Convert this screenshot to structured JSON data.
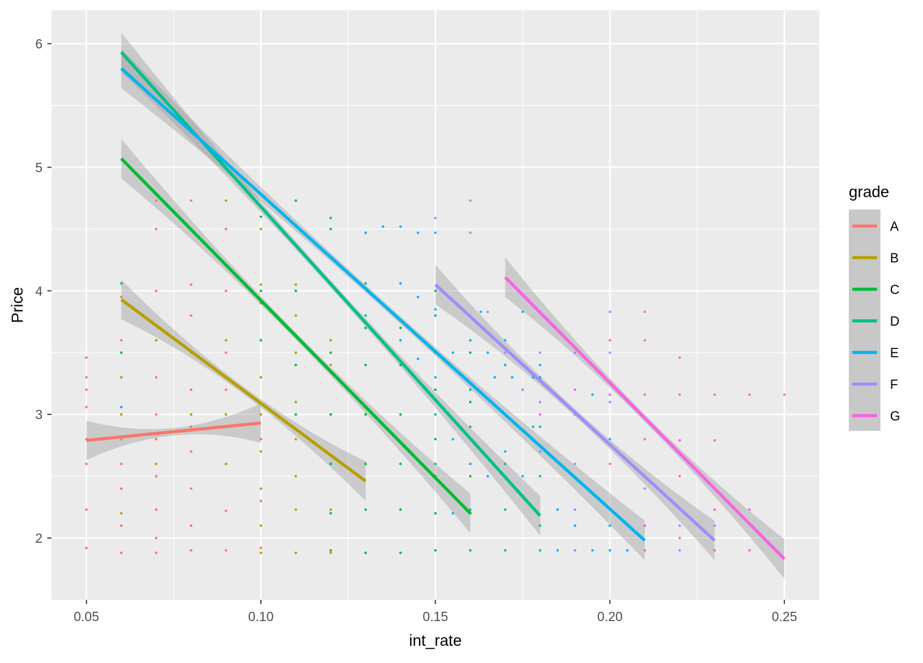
{
  "chart_data": {
    "type": "scatter",
    "xlabel": "int_rate",
    "ylabel": "Price",
    "xlim": [
      0.04,
      0.26
    ],
    "ylim": [
      1.5,
      6.27
    ],
    "x_ticks": [
      0.05,
      0.1,
      0.15,
      0.2,
      0.25
    ],
    "x_tick_labels": [
      "0.05",
      "0.10",
      "0.15",
      "0.20",
      "0.25"
    ],
    "y_ticks": [
      2,
      3,
      4,
      5,
      6
    ],
    "y_tick_labels": [
      "2",
      "3",
      "4",
      "5",
      "6"
    ],
    "grid": true,
    "legend": {
      "title": "grade",
      "position": "right"
    },
    "series": [
      {
        "name": "A",
        "color": "#F8766D",
        "fit": {
          "x": [
            0.05,
            0.1
          ],
          "y": [
            2.79,
            2.93
          ]
        },
        "points": [
          [
            0.05,
            1.92
          ],
          [
            0.05,
            2.23
          ],
          [
            0.05,
            2.6
          ],
          [
            0.05,
            2.8
          ],
          [
            0.05,
            3.06
          ],
          [
            0.05,
            3.2
          ],
          [
            0.05,
            3.3
          ],
          [
            0.05,
            3.46
          ],
          [
            0.06,
            1.88
          ],
          [
            0.06,
            2.1
          ],
          [
            0.06,
            2.4
          ],
          [
            0.06,
            2.6
          ],
          [
            0.06,
            2.8
          ],
          [
            0.06,
            3.06
          ],
          [
            0.06,
            3.3
          ],
          [
            0.06,
            3.6
          ],
          [
            0.06,
            3.95
          ],
          [
            0.07,
            1.88
          ],
          [
            0.07,
            2.0
          ],
          [
            0.07,
            2.23
          ],
          [
            0.07,
            2.5
          ],
          [
            0.07,
            2.8
          ],
          [
            0.07,
            3.0
          ],
          [
            0.07,
            3.3
          ],
          [
            0.07,
            3.6
          ],
          [
            0.07,
            4.0
          ],
          [
            0.07,
            4.5
          ],
          [
            0.07,
            4.73
          ],
          [
            0.08,
            1.9
          ],
          [
            0.08,
            2.1
          ],
          [
            0.08,
            2.4
          ],
          [
            0.08,
            2.7
          ],
          [
            0.08,
            2.9
          ],
          [
            0.08,
            3.2
          ],
          [
            0.08,
            3.5
          ],
          [
            0.08,
            3.8
          ],
          [
            0.08,
            4.05
          ],
          [
            0.08,
            4.5
          ],
          [
            0.08,
            4.73
          ],
          [
            0.09,
            1.9
          ],
          [
            0.09,
            2.22
          ],
          [
            0.09,
            2.6
          ],
          [
            0.09,
            2.9
          ],
          [
            0.09,
            3.2
          ],
          [
            0.09,
            3.5
          ],
          [
            0.09,
            4.0
          ],
          [
            0.09,
            4.5
          ],
          [
            0.1,
            1.92
          ],
          [
            0.1,
            2.3
          ],
          [
            0.1,
            2.8
          ],
          [
            0.1,
            3.3
          ]
        ]
      },
      {
        "name": "B",
        "color": "#B79F00",
        "fit": {
          "x": [
            0.06,
            0.13
          ],
          "y": [
            3.93,
            2.46
          ]
        },
        "points": [
          [
            0.06,
            2.2
          ],
          [
            0.06,
            3.0
          ],
          [
            0.06,
            3.3
          ],
          [
            0.07,
            2.6
          ],
          [
            0.07,
            3.6
          ],
          [
            0.08,
            3.0
          ],
          [
            0.08,
            3.5
          ],
          [
            0.09,
            2.6
          ],
          [
            0.09,
            3.0
          ],
          [
            0.09,
            3.6
          ],
          [
            0.09,
            4.73
          ],
          [
            0.1,
            1.88
          ],
          [
            0.1,
            2.1
          ],
          [
            0.1,
            2.4
          ],
          [
            0.1,
            2.7
          ],
          [
            0.1,
            3.0
          ],
          [
            0.1,
            3.3
          ],
          [
            0.1,
            3.6
          ],
          [
            0.1,
            3.9
          ],
          [
            0.1,
            4.05
          ],
          [
            0.1,
            4.5
          ],
          [
            0.11,
            1.88
          ],
          [
            0.11,
            2.23
          ],
          [
            0.11,
            2.5
          ],
          [
            0.11,
            2.8
          ],
          [
            0.11,
            3.1
          ],
          [
            0.11,
            3.5
          ],
          [
            0.11,
            3.8
          ],
          [
            0.11,
            4.05
          ],
          [
            0.12,
            1.88
          ],
          [
            0.12,
            2.23
          ],
          [
            0.12,
            2.6
          ],
          [
            0.12,
            3.0
          ],
          [
            0.12,
            3.4
          ],
          [
            0.12,
            3.6
          ],
          [
            0.13,
            2.6
          ],
          [
            0.13,
            3.0
          ]
        ]
      },
      {
        "name": "C",
        "color": "#00BA38",
        "fit": {
          "x": [
            0.06,
            0.16
          ],
          "y": [
            5.07,
            2.2
          ]
        },
        "points": [
          [
            0.06,
            3.5
          ],
          [
            0.06,
            4.06
          ],
          [
            0.09,
            3.3
          ],
          [
            0.1,
            3.6
          ],
          [
            0.1,
            4.0
          ],
          [
            0.1,
            4.6
          ],
          [
            0.11,
            3.0
          ],
          [
            0.11,
            3.4
          ],
          [
            0.11,
            4.0
          ],
          [
            0.11,
            4.73
          ],
          [
            0.12,
            1.9
          ],
          [
            0.12,
            2.2
          ],
          [
            0.12,
            2.6
          ],
          [
            0.12,
            3.0
          ],
          [
            0.12,
            3.5
          ],
          [
            0.12,
            4.06
          ],
          [
            0.12,
            4.5
          ],
          [
            0.13,
            1.88
          ],
          [
            0.13,
            2.23
          ],
          [
            0.13,
            2.6
          ],
          [
            0.13,
            3.0
          ],
          [
            0.13,
            3.4
          ],
          [
            0.13,
            3.7
          ],
          [
            0.13,
            4.06
          ],
          [
            0.13,
            4.47
          ],
          [
            0.14,
            1.88
          ],
          [
            0.14,
            2.23
          ],
          [
            0.14,
            2.6
          ],
          [
            0.14,
            3.0
          ],
          [
            0.14,
            3.4
          ],
          [
            0.14,
            3.7
          ],
          [
            0.15,
            1.9
          ],
          [
            0.15,
            2.2
          ],
          [
            0.15,
            2.5
          ],
          [
            0.15,
            2.8
          ],
          [
            0.15,
            3.2
          ],
          [
            0.15,
            3.5
          ],
          [
            0.15,
            3.8
          ],
          [
            0.16,
            1.9
          ],
          [
            0.16,
            2.2
          ],
          [
            0.16,
            2.5
          ],
          [
            0.16,
            2.8
          ],
          [
            0.16,
            3.1
          ],
          [
            0.16,
            3.5
          ]
        ]
      },
      {
        "name": "D",
        "color": "#00C08B",
        "fit": {
          "x": [
            0.06,
            0.18
          ],
          "y": [
            5.93,
            2.18
          ]
        },
        "points": [
          [
            0.06,
            4.06
          ],
          [
            0.12,
            4.06
          ],
          [
            0.12,
            4.59
          ],
          [
            0.13,
            3.8
          ],
          [
            0.13,
            4.06
          ],
          [
            0.14,
            3.6
          ],
          [
            0.14,
            4.06
          ],
          [
            0.15,
            2.2
          ],
          [
            0.15,
            2.6
          ],
          [
            0.15,
            3.0
          ],
          [
            0.15,
            3.5
          ],
          [
            0.15,
            3.8
          ],
          [
            0.15,
            4.0
          ],
          [
            0.16,
            1.9
          ],
          [
            0.16,
            2.23
          ],
          [
            0.16,
            2.6
          ],
          [
            0.16,
            2.9
          ],
          [
            0.16,
            3.2
          ],
          [
            0.16,
            3.6
          ],
          [
            0.17,
            1.9
          ],
          [
            0.17,
            2.23
          ],
          [
            0.17,
            2.6
          ],
          [
            0.17,
            3.0
          ],
          [
            0.17,
            3.4
          ],
          [
            0.18,
            1.9
          ],
          [
            0.18,
            2.1
          ],
          [
            0.18,
            2.5
          ],
          [
            0.18,
            2.9
          ]
        ]
      },
      {
        "name": "E",
        "color": "#00B4F0",
        "fit": {
          "x": [
            0.06,
            0.21
          ],
          "y": [
            5.8,
            1.98
          ]
        },
        "points": [
          [
            0.06,
            3.06
          ],
          [
            0.13,
            4.47
          ],
          [
            0.135,
            4.52
          ],
          [
            0.14,
            4.52
          ],
          [
            0.145,
            4.47
          ],
          [
            0.15,
            4.47
          ],
          [
            0.14,
            4.06
          ],
          [
            0.145,
            3.95
          ],
          [
            0.15,
            3.85
          ],
          [
            0.14,
            3.6
          ],
          [
            0.145,
            3.45
          ],
          [
            0.15,
            3.3
          ],
          [
            0.155,
            3.5
          ],
          [
            0.16,
            3.6
          ],
          [
            0.155,
            2.8
          ],
          [
            0.16,
            2.6
          ],
          [
            0.155,
            2.2
          ],
          [
            0.163,
            3.83
          ],
          [
            0.165,
            3.5
          ],
          [
            0.167,
            3.3
          ],
          [
            0.17,
            3.6
          ],
          [
            0.172,
            3.3
          ],
          [
            0.175,
            3.83
          ],
          [
            0.175,
            3.4
          ],
          [
            0.178,
            3.3
          ],
          [
            0.18,
            3.83
          ],
          [
            0.18,
            3.4
          ],
          [
            0.18,
            3.3
          ],
          [
            0.165,
            2.5
          ],
          [
            0.17,
            2.7
          ],
          [
            0.175,
            2.5
          ],
          [
            0.178,
            2.9
          ],
          [
            0.185,
            1.9
          ],
          [
            0.19,
            1.9
          ],
          [
            0.195,
            1.9
          ],
          [
            0.2,
            1.9
          ],
          [
            0.185,
            2.23
          ],
          [
            0.19,
            2.1
          ],
          [
            0.2,
            2.1
          ],
          [
            0.205,
            1.9
          ],
          [
            0.21,
            2.1
          ],
          [
            0.19,
            3.0
          ],
          [
            0.195,
            3.16
          ],
          [
            0.2,
            3.16
          ],
          [
            0.2,
            2.8
          ],
          [
            0.21,
            2.5
          ]
        ]
      },
      {
        "name": "F",
        "color": "#9C8DFF",
        "fit": {
          "x": [
            0.15,
            0.23
          ],
          "y": [
            4.05,
            1.98
          ]
        },
        "points": [
          [
            0.15,
            4.59
          ],
          [
            0.16,
            4.73
          ],
          [
            0.16,
            4.47
          ],
          [
            0.165,
            3.83
          ],
          [
            0.17,
            3.5
          ],
          [
            0.175,
            3.2
          ],
          [
            0.18,
            3.5
          ],
          [
            0.18,
            3.1
          ],
          [
            0.18,
            2.7
          ],
          [
            0.19,
            1.9
          ],
          [
            0.19,
            2.23
          ],
          [
            0.19,
            2.6
          ],
          [
            0.19,
            3.0
          ],
          [
            0.19,
            3.5
          ],
          [
            0.2,
            3.1
          ],
          [
            0.2,
            3.83
          ],
          [
            0.2,
            3.5
          ],
          [
            0.21,
            1.9
          ],
          [
            0.21,
            2.1
          ],
          [
            0.21,
            2.4
          ],
          [
            0.22,
            1.9
          ],
          [
            0.22,
            2.1
          ],
          [
            0.23,
            1.9
          ],
          [
            0.23,
            2.1
          ]
        ]
      },
      {
        "name": "G",
        "color": "#F564E3",
        "fit": {
          "x": [
            0.17,
            0.25
          ],
          "y": [
            4.11,
            1.83
          ]
        },
        "points": [
          [
            0.18,
            3.0
          ],
          [
            0.19,
            3.2
          ],
          [
            0.2,
            2.6
          ],
          [
            0.2,
            3.16
          ],
          [
            0.2,
            3.6
          ],
          [
            0.21,
            1.9
          ],
          [
            0.21,
            2.1
          ],
          [
            0.21,
            2.5
          ],
          [
            0.21,
            2.8
          ],
          [
            0.21,
            3.16
          ],
          [
            0.21,
            3.6
          ],
          [
            0.21,
            3.83
          ],
          [
            0.22,
            2.0
          ],
          [
            0.22,
            2.5
          ],
          [
            0.22,
            2.79
          ],
          [
            0.22,
            3.16
          ],
          [
            0.22,
            3.46
          ],
          [
            0.23,
            1.9
          ],
          [
            0.23,
            2.23
          ],
          [
            0.23,
            2.79
          ],
          [
            0.23,
            3.16
          ],
          [
            0.24,
            1.9
          ],
          [
            0.24,
            2.23
          ],
          [
            0.24,
            3.16
          ],
          [
            0.25,
            3.16
          ]
        ]
      }
    ]
  }
}
